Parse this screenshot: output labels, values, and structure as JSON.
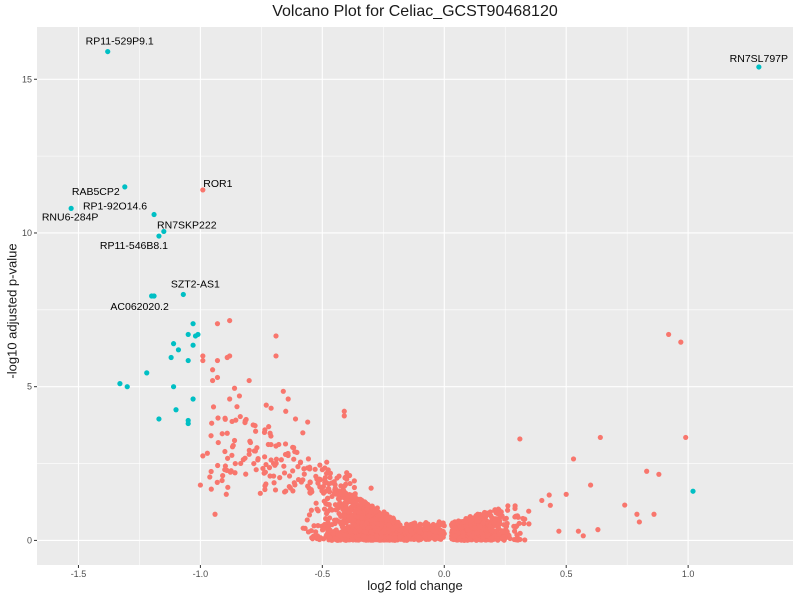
{
  "chart_data": {
    "type": "scatter",
    "title": "Volcano Plot for Celiac_GCST90468120",
    "xlabel": "log2 fold change",
    "ylabel": "-log10 adjusted p-value",
    "xlim": [
      -1.67,
      1.43
    ],
    "ylim": [
      -0.8,
      16.7
    ],
    "x_ticks": [
      -1.5,
      -1.0,
      -0.5,
      0.0,
      0.5,
      1.0
    ],
    "x_tick_labels": [
      "-1.5",
      "-1.0",
      "-0.5",
      "0.0",
      "0.5",
      "1.0"
    ],
    "y_ticks": [
      0,
      5,
      10,
      15
    ],
    "y_tick_labels": [
      "0",
      "5",
      "10",
      "15"
    ],
    "grid": true,
    "legend": "none",
    "colors": {
      "panel": "#ebebeb",
      "grid": "#ffffff",
      "red": "#f8766d",
      "teal": "#00bfc4"
    },
    "series": [
      {
        "color": "#00bfc4",
        "points": [
          [
            -1.38,
            15.9
          ],
          [
            1.29,
            15.4
          ],
          [
            -1.31,
            11.5
          ],
          [
            -1.53,
            10.8
          ],
          [
            -1.19,
            10.6
          ],
          [
            -1.15,
            10.05
          ],
          [
            -1.17,
            9.9
          ],
          [
            -1.07,
            8.0
          ],
          [
            -1.19,
            7.95
          ],
          [
            -1.2,
            7.95
          ],
          [
            -1.05,
            6.7
          ],
          [
            -1.03,
            7.05
          ],
          [
            -1.02,
            6.65
          ],
          [
            -1.01,
            6.7
          ],
          [
            -1.03,
            6.35
          ],
          [
            -1.11,
            6.4
          ],
          [
            -1.09,
            6.2
          ],
          [
            -1.12,
            5.95
          ],
          [
            -1.05,
            5.85
          ],
          [
            -1.22,
            5.45
          ],
          [
            -1.33,
            5.1
          ],
          [
            -1.3,
            5.0
          ],
          [
            -1.11,
            5.0
          ],
          [
            -1.03,
            4.6
          ],
          [
            -1.1,
            4.25
          ],
          [
            -1.17,
            3.95
          ],
          [
            -1.05,
            3.9
          ],
          [
            -1.05,
            3.8
          ],
          [
            1.02,
            1.6
          ]
        ]
      },
      {
        "color": "#f8766d",
        "points": [
          [
            -0.99,
            11.4
          ],
          [
            -0.88,
            7.15
          ],
          [
            -0.93,
            7.05
          ],
          [
            -0.69,
            6.65
          ],
          [
            -0.99,
            6.0
          ],
          [
            -0.93,
            5.85
          ],
          [
            -0.99,
            5.85
          ],
          [
            -0.95,
            5.55
          ],
          [
            -0.88,
            6.0
          ],
          [
            -0.89,
            5.95
          ],
          [
            -0.69,
            6.0
          ],
          [
            -0.93,
            5.3
          ],
          [
            -0.95,
            5.2
          ],
          [
            -0.8,
            5.2
          ],
          [
            -0.66,
            4.85
          ],
          [
            -0.64,
            4.6
          ],
          [
            -0.88,
            4.6
          ],
          [
            -0.84,
            4.7
          ],
          [
            -0.86,
            4.95
          ],
          [
            -0.73,
            4.4
          ],
          [
            -0.85,
            4.35
          ],
          [
            -0.71,
            4.3
          ],
          [
            -0.41,
            4.2
          ],
          [
            -0.41,
            4.05
          ],
          [
            -0.65,
            4.2
          ],
          [
            -0.61,
            3.95
          ],
          [
            -0.56,
            3.85
          ],
          [
            -0.72,
            3.7
          ],
          [
            -0.86,
            3.25
          ],
          [
            -0.58,
            3.5
          ],
          [
            -0.99,
            2.75
          ],
          [
            -0.8,
            2.8
          ],
          [
            -0.7,
            2.5
          ],
          [
            -0.6,
            2.4
          ],
          [
            -0.5,
            2.3
          ],
          [
            -0.4,
            2.2
          ],
          [
            -0.9,
            2.3
          ],
          [
            -1.0,
            1.8
          ],
          [
            -0.55,
            1.9
          ],
          [
            -0.3,
            1.7
          ],
          [
            -0.94,
            0.85
          ],
          [
            0.31,
            3.3
          ],
          [
            0.64,
            3.35
          ],
          [
            0.92,
            6.7
          ],
          [
            0.97,
            6.45
          ],
          [
            0.99,
            3.35
          ],
          [
            0.53,
            2.65
          ],
          [
            0.83,
            2.25
          ],
          [
            0.88,
            2.15
          ],
          [
            0.6,
            1.8
          ],
          [
            0.5,
            1.5
          ],
          [
            0.4,
            1.3
          ],
          [
            0.74,
            1.15
          ],
          [
            0.79,
            0.85
          ],
          [
            0.86,
            0.85
          ],
          [
            0.8,
            0.6
          ],
          [
            0.63,
            0.35
          ],
          [
            0.55,
            0.3
          ],
          [
            0.57,
            0.15
          ],
          [
            0.47,
            0.3
          ]
        ]
      }
    ],
    "annotations": [
      {
        "text": "RP11-529P9.1",
        "x": -1.38,
        "y": 15.9
      },
      {
        "text": "RN7SL797P",
        "x": 1.29,
        "y": 15.4
      },
      {
        "text": "RAB5CP2",
        "x": -1.31,
        "y": 11.5
      },
      {
        "text": "ROR1",
        "x": -0.99,
        "y": 11.4
      },
      {
        "text": "RP1-92O14.6",
        "x": -1.19,
        "y": 10.6
      },
      {
        "text": "RNU6-284P",
        "x": -1.53,
        "y": 10.8
      },
      {
        "text": "RN7SKP222",
        "x": -1.15,
        "y": 10.05
      },
      {
        "text": "RP11-546B8.1",
        "x": -1.17,
        "y": 9.9
      },
      {
        "text": "SZT2-AS1",
        "x": -1.07,
        "y": 8.0
      },
      {
        "text": "AC062020.2",
        "x": -1.2,
        "y": 7.95
      }
    ]
  }
}
